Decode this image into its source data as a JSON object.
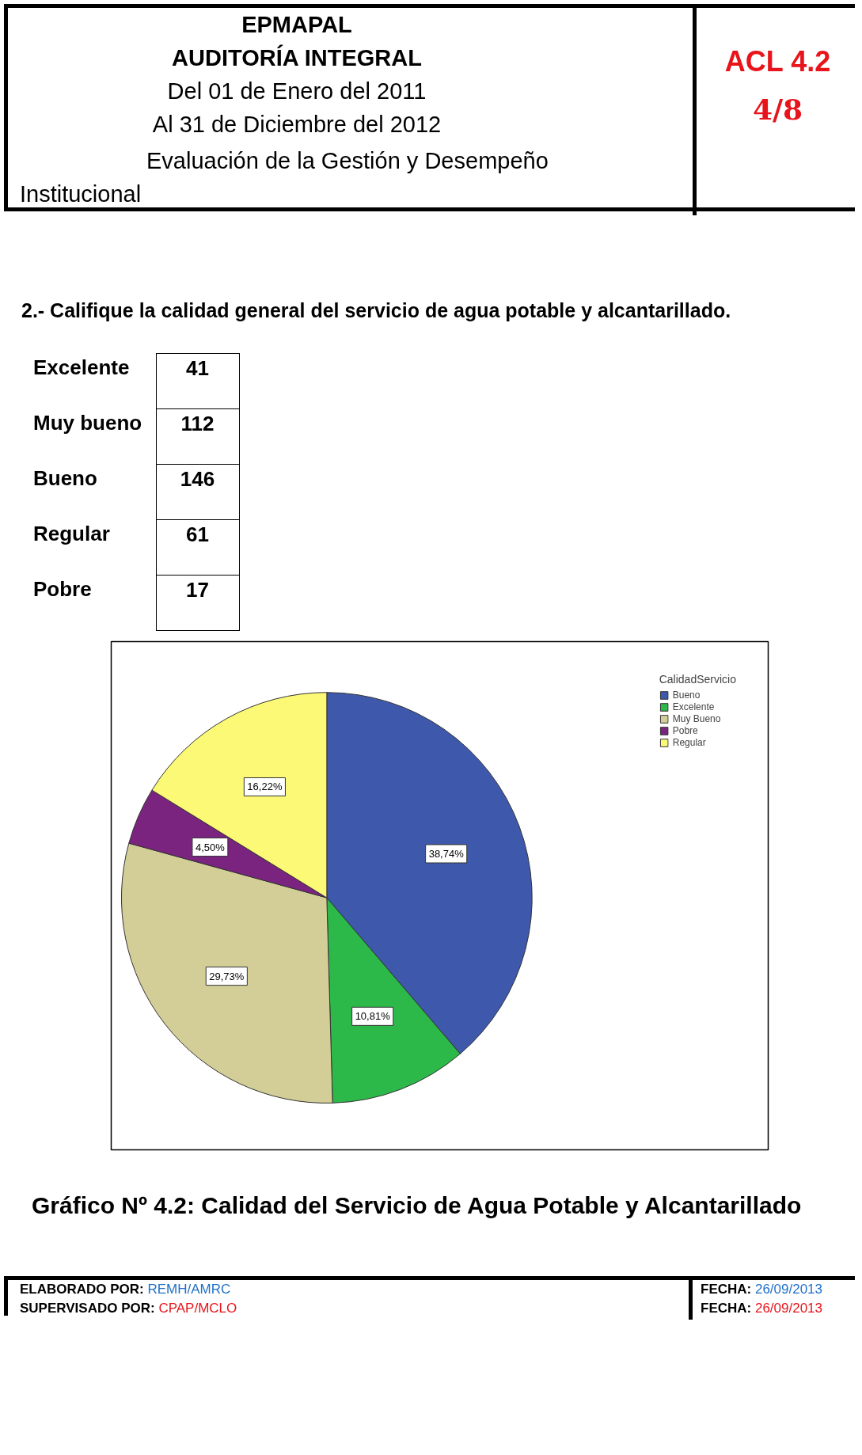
{
  "chart_data": {
    "type": "pie",
    "title": "Gráfico Nº 4.2: Calidad del Servicio de Agua Potable y Alcantarillado",
    "legend_title": "CalidadServicio",
    "legend": "top right",
    "categories": [
      "Bueno",
      "Excelente",
      "Muy Bueno",
      "Pobre",
      "Regular"
    ],
    "values": [
      38.74,
      10.81,
      29.73,
      4.5,
      16.22
    ],
    "colors": [
      "#3e58ac",
      "#2db84a",
      "#d3ce97",
      "#7a2480",
      "#fbf976"
    ],
    "value_labels": [
      "38,74%",
      "10,81%",
      "29,73%",
      "4,50%",
      "16,22%"
    ],
    "annotations": [
      "EPMAPAL",
      "AUDITORÍA INTEGRAL",
      "Del 01 de Enero del 2011",
      "Al 31 de Diciembre del 2012",
      "Evaluación de la Gestión y Desempeño Institucional",
      "ACL 4.2",
      "4/8",
      "2.- Califique la calidad general del servicio de agua potable y alcantarillado.",
      "Excelente 41",
      "Muy bueno 112",
      "Bueno 146",
      "Regular 61",
      "Pobre 17",
      "ELABORADO POR: REMH/AMRC",
      "SUPERVISADO POR: CPAP/MCLO",
      "FECHA: 26/09/2013",
      "FECHA: 26/09/2013"
    ]
  }
}
